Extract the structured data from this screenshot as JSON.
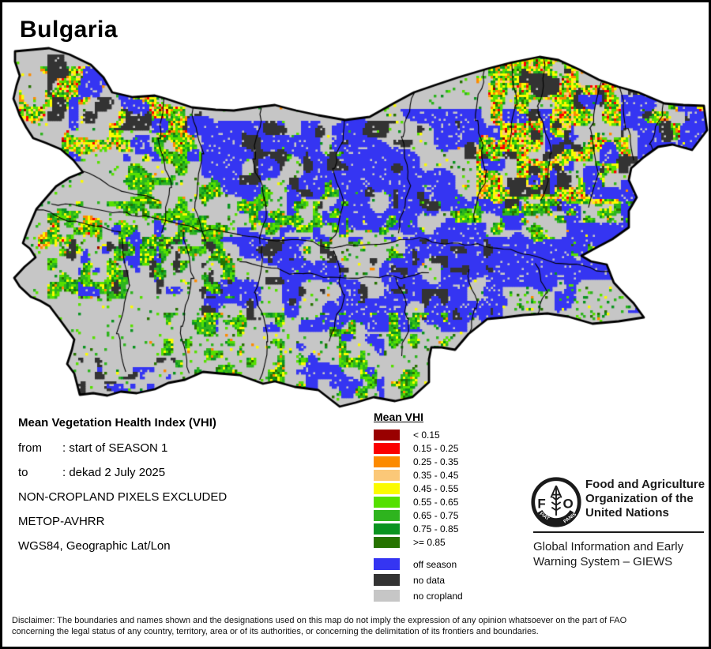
{
  "title": "Bulgaria",
  "info": {
    "heading": "Mean Vegetation Health Index (VHI)",
    "rows": [
      {
        "label": "from",
        "value": ": start of SEASON 1"
      },
      {
        "label": "to",
        "value": ": dekad 2 July 2025"
      }
    ],
    "lines": [
      "NON-CROPLAND PIXELS EXCLUDED",
      "METOP-AVHRR",
      "WGS84, Geographic Lat/Lon"
    ]
  },
  "legend": {
    "title": "Mean VHI",
    "classes": [
      {
        "label": "< 0.15",
        "color": "#990000"
      },
      {
        "label": "0.15 - 0.25",
        "color": "#fa0000"
      },
      {
        "label": "0.25 - 0.35",
        "color": "#fc8a00"
      },
      {
        "label": "0.35 - 0.45",
        "color": "#fbc878"
      },
      {
        "label": "0.45 - 0.55",
        "color": "#fbfb00"
      },
      {
        "label": "0.55 - 0.65",
        "color": "#55e000"
      },
      {
        "label": "0.65 - 0.75",
        "color": "#2eb41e"
      },
      {
        "label": "0.75 - 0.85",
        "color": "#0a9420"
      },
      {
        "label": ">= 0.85",
        "color": "#267300"
      }
    ],
    "extra": [
      {
        "label": "off season",
        "color": "#3535f2"
      },
      {
        "label": "no data",
        "color": "#333333"
      },
      {
        "label": "no cropland",
        "color": "#c6c6c6"
      }
    ]
  },
  "org": {
    "logo_letters": {
      "f": "F",
      "a": "A",
      "o": "O"
    },
    "logo_motto": {
      "left": "FIAT",
      "right": "PANIS"
    },
    "name_lines": [
      "Food and Agriculture",
      "Organization of the",
      "United Nations"
    ],
    "division_lines": [
      "Global Information and Early",
      "Warning System – GIEWS"
    ]
  },
  "disclaimer_lines": [
    "Disclaimer: The boundaries and names shown and the designations used on this map do not imply the expression of any opinion whatsoever on the part of FAO",
    "concerning the legal status of any country, territory, area or of its authorities, or concerning the delimitation of its frontiers and boundaries."
  ]
}
